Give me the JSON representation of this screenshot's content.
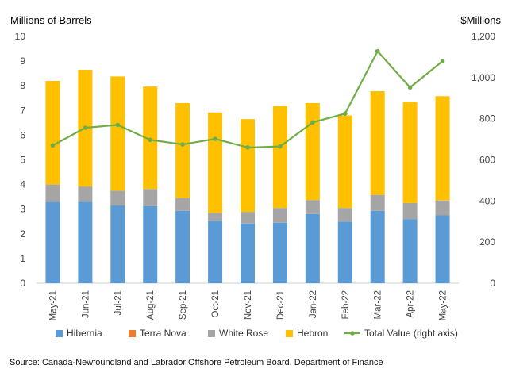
{
  "chart_data": {
    "type": "bar",
    "stacked": true,
    "ylabel_left": "Millions of Barrels",
    "ylabel_right": "$Millions",
    "ylim_left": [
      0,
      10
    ],
    "yticks_left": [
      "0",
      "1",
      "2",
      "3",
      "4",
      "5",
      "6",
      "7",
      "8",
      "9",
      "10"
    ],
    "ylim_right": [
      0,
      1200
    ],
    "yticks_right": [
      "0",
      "200",
      "400",
      "600",
      "800",
      "1,000",
      "1,200"
    ],
    "categories": [
      "May-21",
      "Jun-21",
      "Jul-21",
      "Aug-21",
      "Sep-21",
      "Oct-21",
      "Nov-21",
      "Dec-21",
      "Jan-22",
      "Feb-22",
      "Mar-22",
      "Apr-22",
      "May-22"
    ],
    "series": [
      {
        "name": "Hibernia",
        "color": "#5b9bd5",
        "axis": "left",
        "values": [
          3.3,
          3.3,
          3.15,
          3.12,
          2.93,
          2.53,
          2.42,
          2.45,
          2.8,
          2.5,
          2.93,
          2.6,
          2.75
        ]
      },
      {
        "name": "Terra Nova",
        "color": "#ed7d31",
        "axis": "left",
        "values": [
          0,
          0,
          0,
          0,
          0,
          0,
          0,
          0,
          0,
          0,
          0,
          0,
          0
        ]
      },
      {
        "name": "White Rose",
        "color": "#a5a5a5",
        "axis": "left",
        "values": [
          0.7,
          0.62,
          0.6,
          0.7,
          0.52,
          0.32,
          0.47,
          0.6,
          0.57,
          0.55,
          0.65,
          0.65,
          0.6
        ]
      },
      {
        "name": "Hebron",
        "color": "#ffc000",
        "axis": "left",
        "values": [
          4.2,
          4.73,
          4.63,
          4.15,
          3.85,
          4.07,
          3.76,
          4.13,
          3.93,
          3.75,
          4.2,
          4.1,
          4.23
        ]
      }
    ],
    "line_series": {
      "name": "Total Value (right axis)",
      "color": "#70ad47",
      "axis": "right",
      "values": [
        670,
        756,
        770,
        697,
        675,
        702,
        660,
        665,
        782,
        825,
        1128,
        952,
        1080
      ]
    },
    "legend_position": "bottom",
    "grid": false
  },
  "source": "Source: Canada-Newfoundland and Labrador Offshore Petroleum Board, Department of Finance"
}
